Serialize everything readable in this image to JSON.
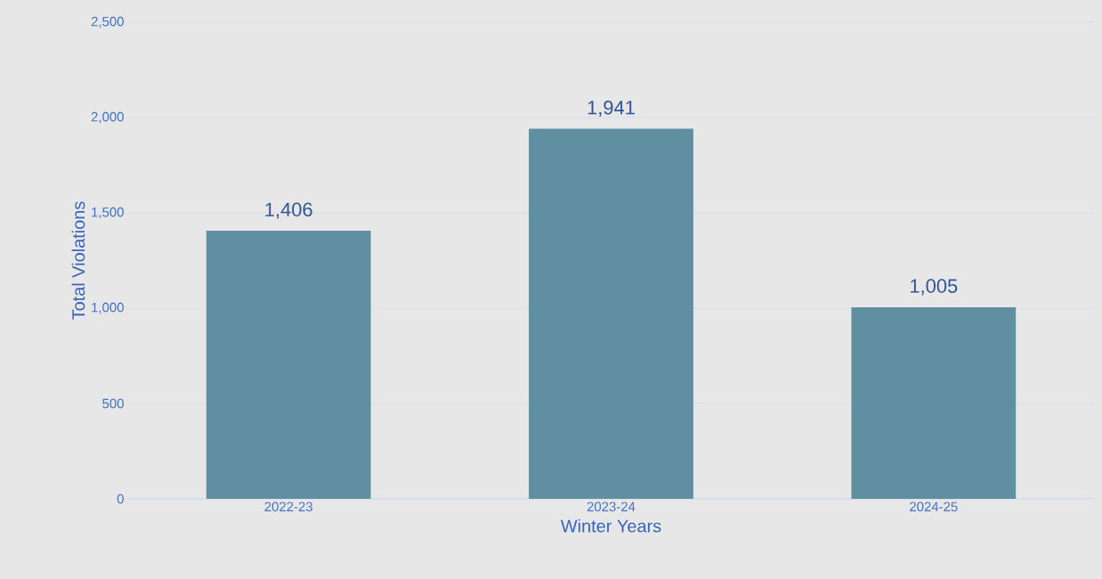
{
  "chart_data": {
    "type": "bar",
    "xlabel": "Winter Years",
    "ylabel": "Total Violations",
    "categories": [
      "2022-23",
      "2023-24",
      "2024-25"
    ],
    "values": [
      1406,
      1941,
      1005
    ],
    "value_labels": [
      "1,406",
      "1,941",
      "1,005"
    ],
    "color": "#5f8fa0",
    "ylim": [
      0,
      2500
    ],
    "yticks": [
      0,
      500,
      {
        "value": 1000,
        "label": "1,000"
      },
      {
        "value": 1500,
        "label": "1,500"
      },
      {
        "value": 2000,
        "label": "2,000"
      },
      {
        "value": 2500,
        "label": "2,500"
      }
    ],
    "grid": "y"
  }
}
